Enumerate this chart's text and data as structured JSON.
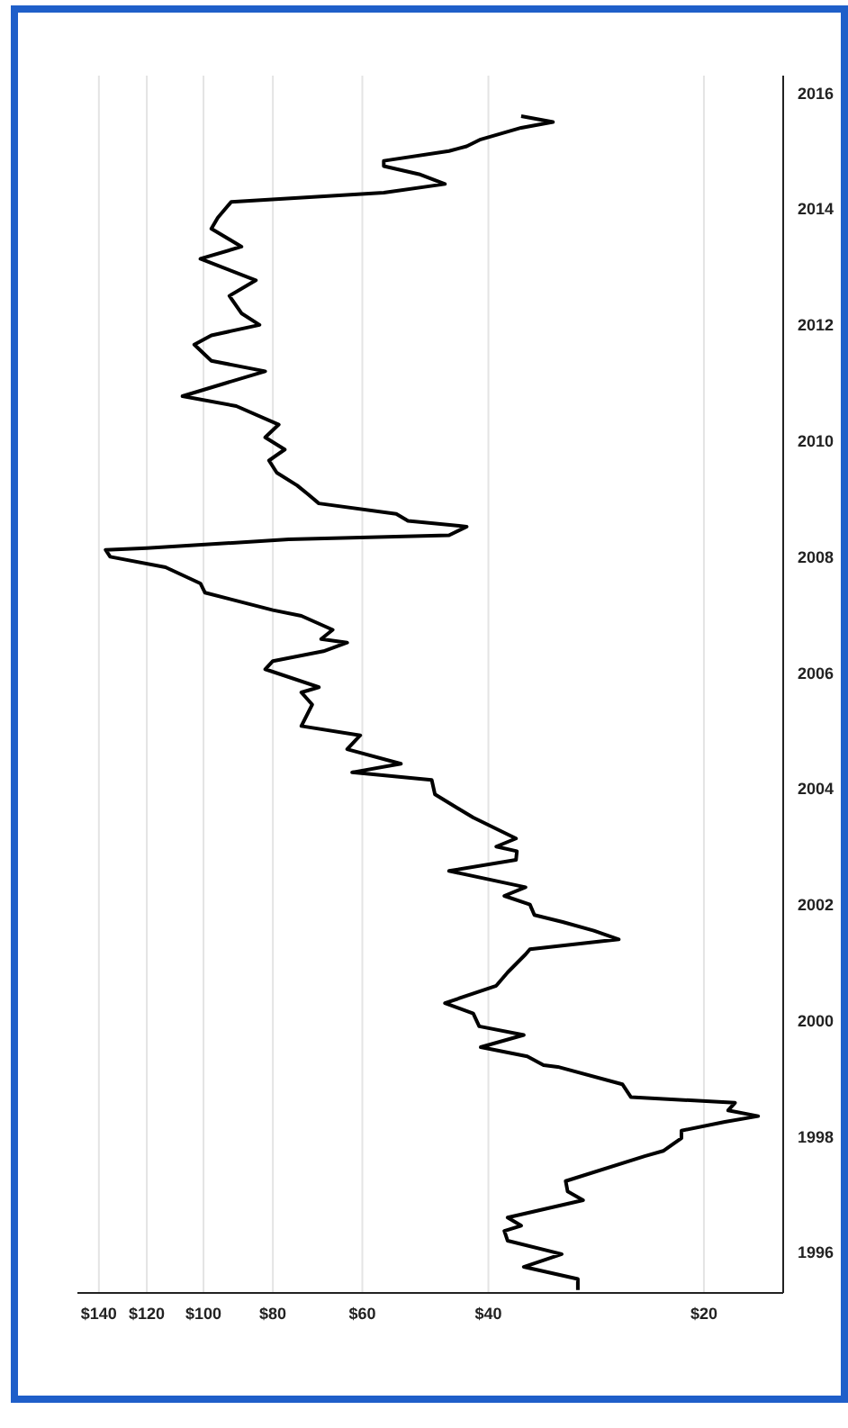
{
  "chart_data": {
    "type": "line",
    "orientation": "horizontal",
    "log": "x",
    "grid": "x",
    "marker": "none",
    "line_style": "solid",
    "ylim": [
      1995.3,
      2016.3
    ],
    "yticks": [
      1996,
      1998,
      2000,
      2002,
      2004,
      2006,
      2008,
      2010,
      2012,
      2014,
      2016
    ],
    "xlim": [
      150,
      15.5
    ],
    "xticks": [
      {
        "value": 20,
        "label": "$20"
      },
      {
        "value": 40,
        "label": "$40"
      },
      {
        "value": 60,
        "label": "$60"
      },
      {
        "value": 80,
        "label": "$80"
      },
      {
        "value": 100,
        "label": "$100"
      },
      {
        "value": 120,
        "label": "$120"
      },
      {
        "value": 140,
        "label": "$140"
      }
    ],
    "x": [
      1995.35,
      1995.54,
      1995.75,
      1995.97,
      1996.2,
      1996.37,
      1996.46,
      1996.6,
      1996.9,
      1997.05,
      1997.23,
      1997.66,
      1997.75,
      1997.97,
      1998.1,
      1998.25,
      1998.35,
      1998.45,
      1998.58,
      1998.68,
      1998.9,
      1999.2,
      1999.23,
      1999.38,
      1999.54,
      1999.75,
      1999.9,
      2000.12,
      2000.3,
      2000.6,
      2000.83,
      2001.14,
      2001.23,
      2001.4,
      2001.55,
      2001.7,
      2001.82,
      2002.0,
      2002.15,
      2002.3,
      2002.58,
      2002.77,
      2002.92,
      2003.0,
      2003.14,
      2003.5,
      2003.9,
      2004.15,
      2004.28,
      2004.43,
      2004.68,
      2004.92,
      2005.08,
      2005.45,
      2005.66,
      2005.75,
      2006.06,
      2006.2,
      2006.37,
      2006.52,
      2006.58,
      2006.74,
      2006.98,
      2007.08,
      2007.38,
      2007.54,
      2007.82,
      2008.0,
      2008.12,
      2008.15,
      2008.3,
      2008.37,
      2008.52,
      2008.62,
      2008.74,
      2008.92,
      2009.08,
      2009.23,
      2009.45,
      2009.66,
      2009.85,
      2010.06,
      2010.28,
      2010.6,
      2010.77,
      2010.98,
      2011.2,
      2011.38,
      2011.66,
      2011.82,
      2012.0,
      2012.2,
      2012.5,
      2012.77,
      2013.14,
      2013.35,
      2013.66,
      2013.85,
      2014.12,
      2014.28,
      2014.43,
      2014.6,
      2014.74,
      2014.83,
      2015.0,
      2015.08,
      2015.2,
      2015.4,
      2015.5,
      2015.6
    ],
    "series": [
      {
        "color": "#000000",
        "values": [
          30,
          30,
          35.7,
          31.6,
          37.6,
          38,
          36,
          37.6,
          29.5,
          31,
          31.2,
          24.2,
          22.8,
          21.5,
          21.5,
          18.7,
          16.8,
          18.5,
          18.1,
          25.3,
          26,
          32,
          33.5,
          35.3,
          41,
          35.7,
          41.2,
          42,
          46,
          39,
          37.6,
          35.5,
          35,
          26.3,
          28.5,
          31.5,
          34.5,
          35,
          38,
          35.5,
          45.4,
          36.6,
          36.5,
          39,
          36.6,
          42,
          47.5,
          48,
          62,
          53,
          63,
          60.4,
          73,
          70.5,
          73,
          69,
          82,
          80,
          68,
          63,
          68.5,
          66,
          73,
          80,
          99.5,
          101,
          113,
          135,
          137,
          120,
          76,
          45.4,
          42.9,
          51.8,
          53.8,
          69,
          71.5,
          74,
          79,
          81,
          77,
          82,
          78.5,
          90,
          107,
          94,
          82,
          97.5,
          103,
          97.5,
          83.5,
          88.5,
          92,
          84.5,
          101,
          88.5,
          97.5,
          95.5,
          91.5,
          56,
          46,
          50,
          56,
          56,
          45.4,
          42.9,
          41,
          36,
          32.5,
          36
        ]
      }
    ]
  }
}
